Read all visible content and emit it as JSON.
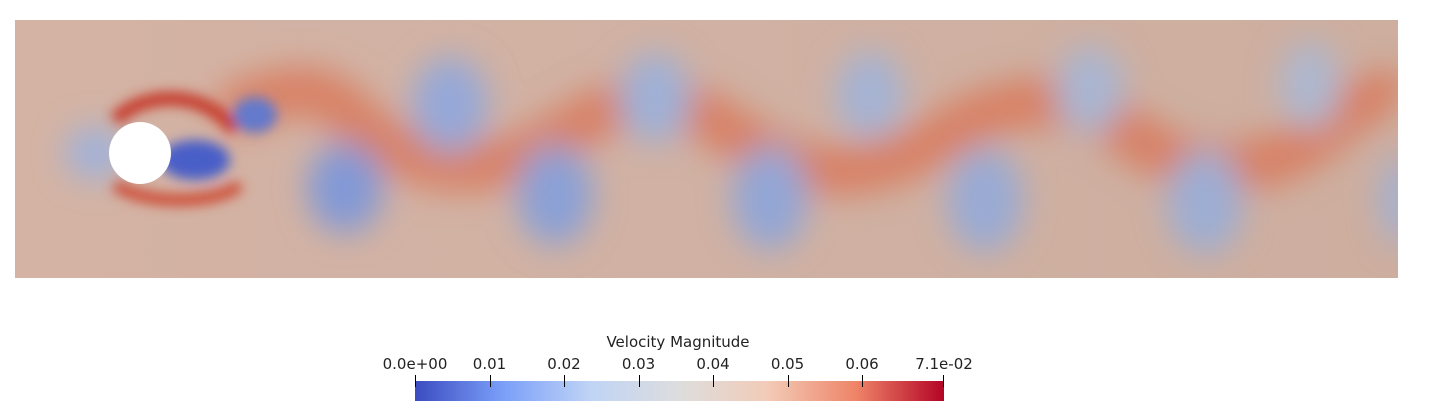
{
  "legend": {
    "title": "Velocity Magnitude",
    "ticks": [
      {
        "value": 0.0,
        "label": "0.0e+00"
      },
      {
        "value": 0.01,
        "label": "0.01"
      },
      {
        "value": 0.02,
        "label": "0.02"
      },
      {
        "value": 0.03,
        "label": "0.03"
      },
      {
        "value": 0.04,
        "label": "0.04"
      },
      {
        "value": 0.05,
        "label": "0.05"
      },
      {
        "value": 0.06,
        "label": "0.06"
      },
      {
        "value": 0.071,
        "label": "7.1e-02"
      }
    ],
    "range": [
      0.0,
      0.071
    ],
    "colormap": [
      "#3b4cc0",
      "#7b9ff9",
      "#c0d4f5",
      "#dddddd",
      "#f2cbb7",
      "#ee8468",
      "#b40426"
    ]
  },
  "field": {
    "background_color": "#c8a898",
    "obstacle_color": "#ffffff"
  }
}
